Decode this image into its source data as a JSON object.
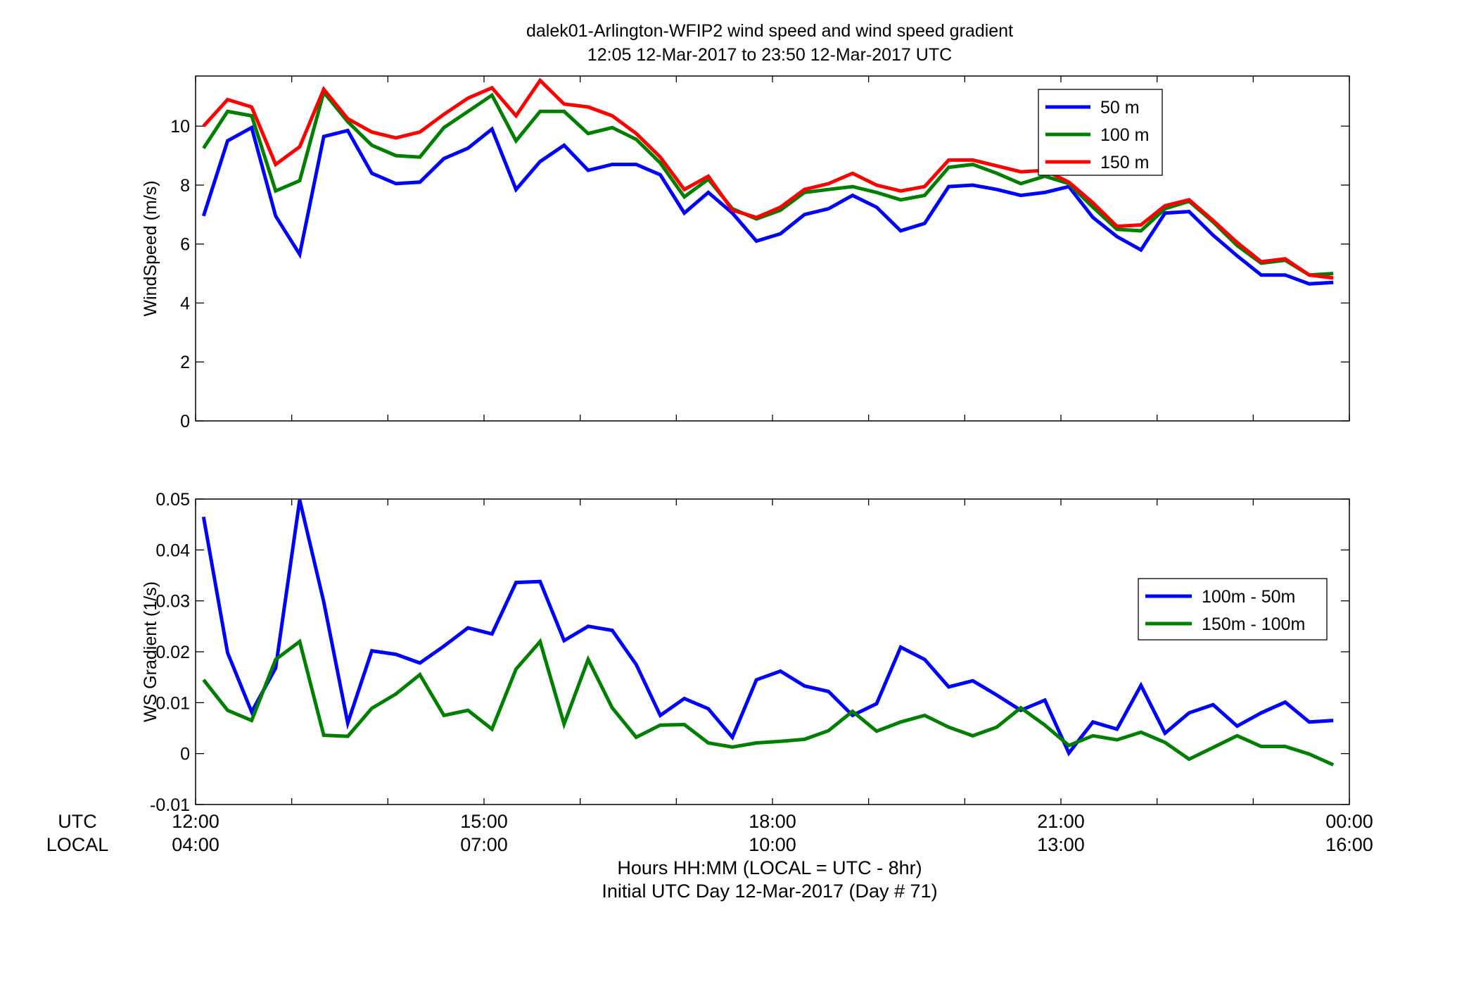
{
  "title": {
    "line1": "dalek01-Arlington-WFIP2  wind speed and wind speed gradient",
    "line2": "12:05 12-Mar-2017 to 23:50 12-Mar-2017  UTC"
  },
  "row_labels": {
    "utc": "UTC",
    "local": "LOCAL"
  },
  "x_ticks": [
    {
      "t": 12,
      "utc": "12:00",
      "local": "04:00"
    },
    {
      "t": 15,
      "utc": "15:00",
      "local": "07:00"
    },
    {
      "t": 18,
      "utc": "18:00",
      "local": "10:00"
    },
    {
      "t": 21,
      "utc": "21:00",
      "local": "13:00"
    },
    {
      "t": 24,
      "utc": "00:00",
      "local": "16:00"
    }
  ],
  "footer": {
    "line1": "Hours HH:MM  (LOCAL = UTC - 8hr)",
    "line2": "Initial UTC Day 12-Mar-2017 (Day # 71)"
  },
  "chart_data": [
    {
      "type": "line",
      "title": "",
      "xlabel": "",
      "ylabel": "WindSpeed (m/s)",
      "xlim": [
        12,
        24
      ],
      "ylim": [
        0,
        11.7
      ],
      "yticks": [
        0,
        2,
        4,
        6,
        8,
        10
      ],
      "grid": false,
      "legend_position": "top-right",
      "x": [
        12.083,
        12.333,
        12.583,
        12.833,
        13.083,
        13.333,
        13.583,
        13.833,
        14.083,
        14.333,
        14.583,
        14.833,
        15.083,
        15.333,
        15.583,
        15.833,
        16.083,
        16.333,
        16.583,
        16.833,
        17.083,
        17.333,
        17.583,
        17.833,
        18.083,
        18.333,
        18.583,
        18.833,
        19.083,
        19.333,
        19.583,
        19.833,
        20.083,
        20.333,
        20.583,
        20.833,
        21.083,
        21.333,
        21.583,
        21.833,
        22.083,
        22.333,
        22.583,
        22.833,
        23.083,
        23.333,
        23.583,
        23.833
      ],
      "series": [
        {
          "name": "50 m",
          "color": "#0000ff",
          "values": [
            6.95,
            9.5,
            9.95,
            6.95,
            5.65,
            9.65,
            9.85,
            8.4,
            8.05,
            8.1,
            8.9,
            9.25,
            9.9,
            7.85,
            8.8,
            9.35,
            8.5,
            8.7,
            8.7,
            8.35,
            7.05,
            7.75,
            7.05,
            6.1,
            6.35,
            7.0,
            7.2,
            7.65,
            7.25,
            6.45,
            6.7,
            7.95,
            8.0,
            7.85,
            7.65,
            7.75,
            7.95,
            6.9,
            6.25,
            5.8,
            7.05,
            7.1,
            6.3,
            5.6,
            4.95,
            4.95,
            4.65,
            4.7
          ]
        },
        {
          "name": "100 m",
          "color": "#007f00",
          "values": [
            9.25,
            10.5,
            10.35,
            7.8,
            8.15,
            11.15,
            10.15,
            9.35,
            9.0,
            8.95,
            9.95,
            10.5,
            11.05,
            9.5,
            10.5,
            10.5,
            9.75,
            9.95,
            9.55,
            8.75,
            7.6,
            8.2,
            7.2,
            6.85,
            7.15,
            7.75,
            7.85,
            7.95,
            7.75,
            7.5,
            7.65,
            8.6,
            8.7,
            8.4,
            8.05,
            8.3,
            8.05,
            7.25,
            6.5,
            6.45,
            7.2,
            7.45,
            6.75,
            5.95,
            5.35,
            5.45,
            4.95,
            5.0
          ]
        },
        {
          "name": "150 m",
          "color": "#ff0000",
          "values": [
            10.0,
            10.9,
            10.65,
            8.7,
            9.3,
            11.25,
            10.25,
            9.8,
            9.6,
            9.8,
            10.4,
            10.95,
            11.3,
            10.35,
            11.55,
            10.75,
            10.65,
            10.35,
            9.75,
            8.95,
            7.85,
            8.3,
            7.15,
            6.9,
            7.25,
            7.85,
            8.05,
            8.4,
            8.0,
            7.8,
            7.95,
            8.85,
            8.85,
            8.65,
            8.45,
            8.5,
            8.1,
            7.4,
            6.6,
            6.65,
            7.3,
            7.5,
            6.8,
            6.05,
            5.4,
            5.5,
            4.95,
            4.85
          ]
        }
      ]
    },
    {
      "type": "line",
      "title": "",
      "xlabel": "",
      "ylabel": "WS Gradient (1/s)",
      "xlim": [
        12,
        24
      ],
      "ylim": [
        -0.01,
        0.05
      ],
      "yticks": [
        -0.01,
        0,
        0.01,
        0.02,
        0.03,
        0.04,
        0.05
      ],
      "ytick_labels": [
        "-0.01",
        "0",
        "0.01",
        "0.02",
        "0.03",
        "0.04",
        "0.05"
      ],
      "grid": false,
      "legend_position": "right",
      "x": [
        12.083,
        12.333,
        12.583,
        12.833,
        13.083,
        13.333,
        13.583,
        13.833,
        14.083,
        14.333,
        14.583,
        14.833,
        15.083,
        15.333,
        15.583,
        15.833,
        16.083,
        16.333,
        16.583,
        16.833,
        17.083,
        17.333,
        17.583,
        17.833,
        18.083,
        18.333,
        18.583,
        18.833,
        19.083,
        19.333,
        19.583,
        19.833,
        20.083,
        20.333,
        20.583,
        20.833,
        21.083,
        21.333,
        21.583,
        21.833,
        22.083,
        22.333,
        22.583,
        22.833,
        23.083,
        23.333,
        23.583,
        23.833
      ],
      "series": [
        {
          "name": "100m - 50m",
          "color": "#0000ff",
          "values": [
            0.0465,
            0.0198,
            0.0082,
            0.0168,
            0.0498,
            0.0298,
            0.006,
            0.0202,
            0.0195,
            0.0178,
            0.0211,
            0.0247,
            0.0235,
            0.0336,
            0.0338,
            0.0222,
            0.025,
            0.0242,
            0.0175,
            0.0075,
            0.0108,
            0.0088,
            0.0032,
            0.0145,
            0.0162,
            0.0133,
            0.0122,
            0.0075,
            0.0098,
            0.0209,
            0.0185,
            0.0131,
            0.0143,
            0.0115,
            0.0085,
            0.0105,
            0.0001,
            0.0062,
            0.0048,
            0.0134,
            0.004,
            0.008,
            0.0096,
            0.0054,
            0.008,
            0.0101,
            0.0062,
            0.0065
          ]
        },
        {
          "name": "150m - 100m",
          "color": "#007f00",
          "values": [
            0.0145,
            0.0085,
            0.0065,
            0.0185,
            0.022,
            0.0036,
            0.0034,
            0.0089,
            0.0117,
            0.0155,
            0.0075,
            0.0085,
            0.0048,
            0.0166,
            0.022,
            0.0058,
            0.0185,
            0.009,
            0.0032,
            0.0056,
            0.0057,
            0.0021,
            0.0013,
            0.0021,
            0.0024,
            0.0028,
            0.0045,
            0.0083,
            0.0044,
            0.0062,
            0.0075,
            0.0052,
            0.0035,
            0.0052,
            0.009,
            0.0056,
            0.0016,
            0.0035,
            0.0027,
            0.0042,
            0.0022,
            -0.0011,
            0.0012,
            0.0035,
            0.0014,
            0.0014,
            -0.0001,
            -0.0022
          ]
        }
      ]
    }
  ]
}
